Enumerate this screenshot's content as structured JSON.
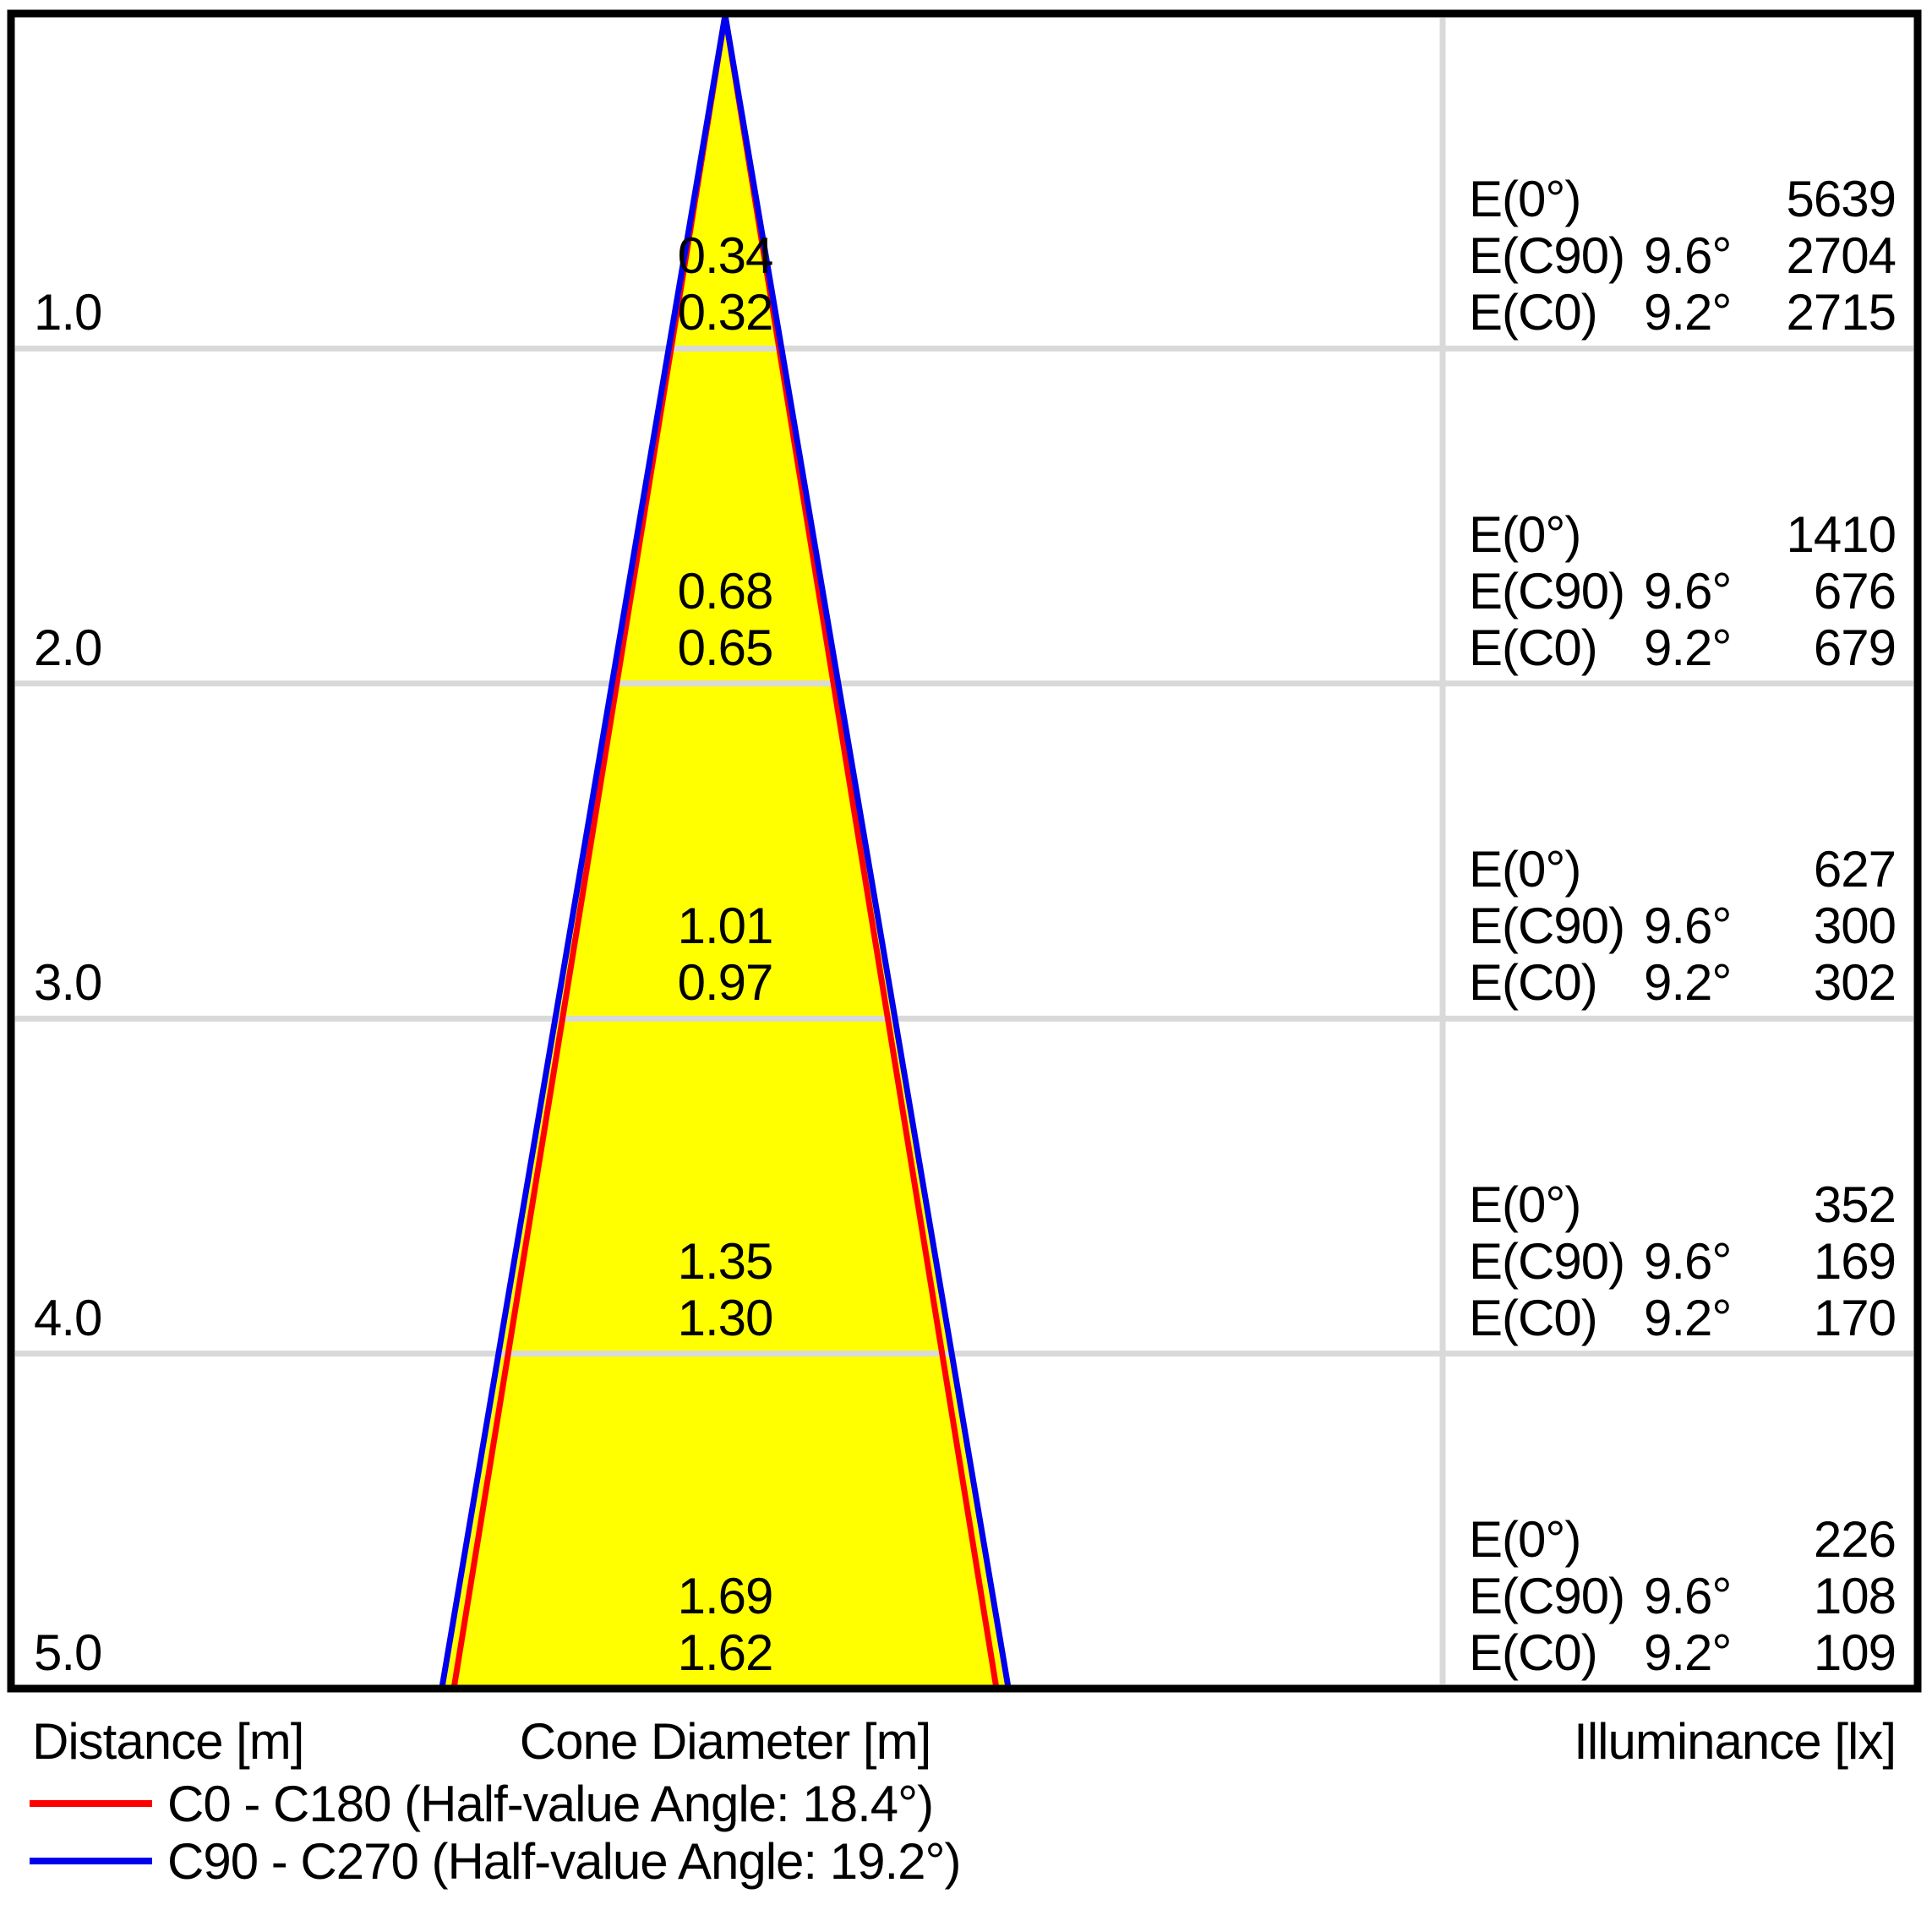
{
  "colors": {
    "cone_fill": "#ffff00",
    "c0_line": "#ff0000",
    "c90_line": "#0000ee",
    "gridline": "#d9d9d9",
    "frame": "#000000"
  },
  "footer": {
    "distance_label": "Distance [m]",
    "cone_diameter_label": "Cone Diameter [m]",
    "illuminance_label": "Illuminance [lx]"
  },
  "legend": [
    {
      "color": "#ff0000",
      "label": "C0 - C180 (Half-value Angle: 18.4°)"
    },
    {
      "color": "#0000ee",
      "label": "C90 - C270 (Half-value Angle: 19.2°)"
    }
  ],
  "chart_data": {
    "type": "cone-diagram",
    "title": "",
    "half_value_angle_c0_c180_deg": 18.4,
    "half_value_angle_c90_c270_deg": 19.2,
    "distances_m": [
      1.0,
      2.0,
      3.0,
      4.0,
      5.0
    ],
    "cone_diameter_c90_c270_m": [
      0.34,
      0.68,
      1.01,
      1.35,
      1.69
    ],
    "cone_diameter_c0_c180_m": [
      0.32,
      0.65,
      0.97,
      1.3,
      1.62
    ],
    "illuminance_e0_lx": [
      5639,
      1410,
      627,
      352,
      226
    ],
    "illuminance_ec90_lx": [
      2704,
      676,
      300,
      169,
      108
    ],
    "illuminance_ec0_lx": [
      2715,
      679,
      302,
      170,
      109
    ],
    "rows": [
      {
        "distance": "1.0",
        "cone_c90": "0.34",
        "cone_c0": "0.32",
        "e_lines": [
          {
            "label": "E(0°)",
            "angle": "",
            "value": "5639"
          },
          {
            "label": "E(C90)",
            "angle": "9.6°",
            "value": "2704"
          },
          {
            "label": "E(C0)",
            "angle": "9.2°",
            "value": "2715"
          }
        ]
      },
      {
        "distance": "2.0",
        "cone_c90": "0.68",
        "cone_c0": "0.65",
        "e_lines": [
          {
            "label": "E(0°)",
            "angle": "",
            "value": "1410"
          },
          {
            "label": "E(C90)",
            "angle": "9.6°",
            "value": "676"
          },
          {
            "label": "E(C0)",
            "angle": "9.2°",
            "value": "679"
          }
        ]
      },
      {
        "distance": "3.0",
        "cone_c90": "1.01",
        "cone_c0": "0.97",
        "e_lines": [
          {
            "label": "E(0°)",
            "angle": "",
            "value": "627"
          },
          {
            "label": "E(C90)",
            "angle": "9.6°",
            "value": "300"
          },
          {
            "label": "E(C0)",
            "angle": "9.2°",
            "value": "302"
          }
        ]
      },
      {
        "distance": "4.0",
        "cone_c90": "1.35",
        "cone_c0": "1.30",
        "e_lines": [
          {
            "label": "E(0°)",
            "angle": "",
            "value": "352"
          },
          {
            "label": "E(C90)",
            "angle": "9.6°",
            "value": "169"
          },
          {
            "label": "E(C0)",
            "angle": "9.2°",
            "value": "170"
          }
        ]
      },
      {
        "distance": "5.0",
        "cone_c90": "1.69",
        "cone_c0": "1.62",
        "e_lines": [
          {
            "label": "E(0°)",
            "angle": "",
            "value": "226"
          },
          {
            "label": "E(C90)",
            "angle": "9.6°",
            "value": "108"
          },
          {
            "label": "E(C0)",
            "angle": "9.2°",
            "value": "109"
          }
        ]
      }
    ]
  }
}
